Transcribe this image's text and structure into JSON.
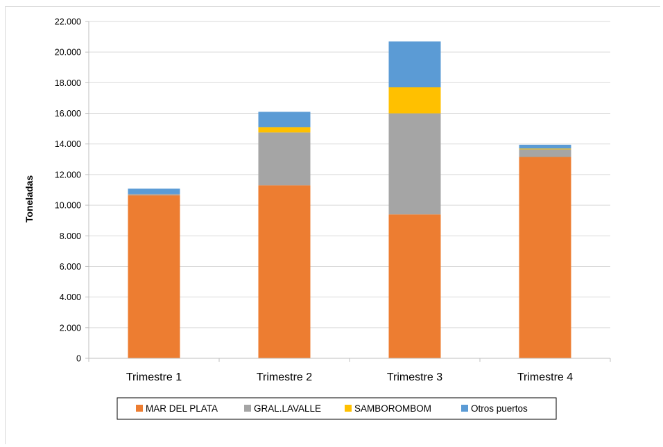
{
  "chart_data": {
    "type": "bar",
    "stacked": true,
    "categories": [
      "Trimestre 1",
      "Trimestre 2",
      "Trimestre 3",
      "Trimestre 4"
    ],
    "series": [
      {
        "name": "MAR DEL PLATA",
        "color": "#ED7D31",
        "values": [
          10650,
          11300,
          9400,
          13150
        ]
      },
      {
        "name": "GRAL.LAVALLE",
        "color": "#A5A5A5",
        "values": [
          80,
          3450,
          6600,
          500
        ]
      },
      {
        "name": "SAMBOROMBOM",
        "color": "#FFC000",
        "values": [
          0,
          350,
          1700,
          50
        ]
      },
      {
        "name": "Otros puertos",
        "color": "#5B9BD5",
        "values": [
          350,
          1000,
          3000,
          250
        ]
      }
    ],
    "title": "",
    "xlabel": "",
    "ylabel": "Toneladas",
    "ylim": [
      0,
      22000
    ],
    "yticks": [
      "0",
      "2.000",
      "4.000",
      "6.000",
      "8.000",
      "10.000",
      "12.000",
      "14.000",
      "16.000",
      "18.000",
      "20.000",
      "22.000"
    ],
    "grid": true,
    "legend_position": "bottom"
  }
}
